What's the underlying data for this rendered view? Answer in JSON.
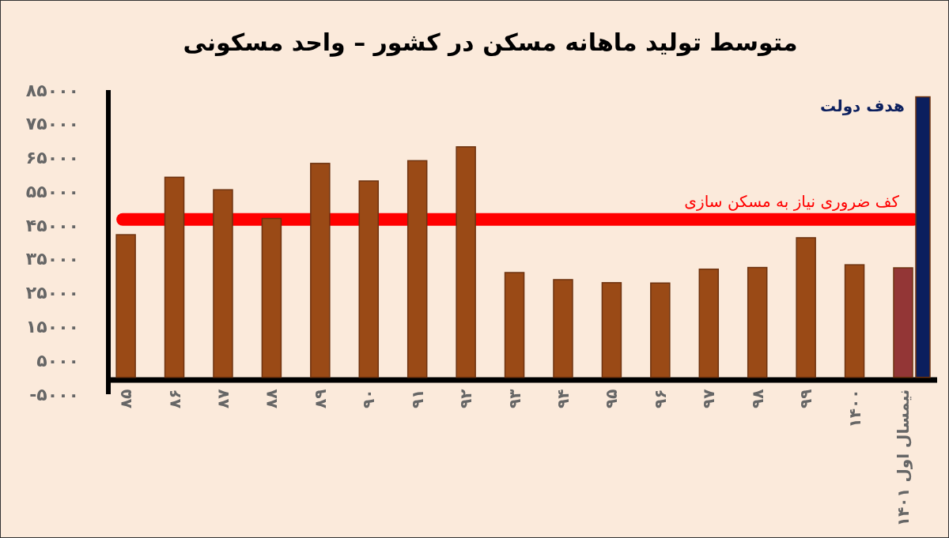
{
  "chart_data": {
    "type": "bar",
    "title": "متوسط تولید ماهانه مسکن در کشور – واحد مسکونی",
    "categories": [
      "۸۵",
      "۸۶",
      "۸۷",
      "۸۸",
      "۸۹",
      "۹۰",
      "۹۱",
      "۹۲",
      "۹۳",
      "۹۴",
      "۹۵",
      "۹۶",
      "۹۷",
      "۹۸",
      "۹۹",
      "۱۴۰۰",
      "نیمسال اول ۱۴۰۱"
    ],
    "series": [
      {
        "values": [
          42200,
          59200,
          55500,
          47000,
          63300,
          58100,
          64100,
          68200,
          31000,
          28900,
          28000,
          27900,
          32000,
          32500,
          41300,
          33300,
          32400
        ],
        "colors": [
          "#9a4a16",
          "#9a4a16",
          "#9a4a16",
          "#9a4a16",
          "#9a4a16",
          "#9a4a16",
          "#9a4a16",
          "#9a4a16",
          "#9a4a16",
          "#9a4a16",
          "#9a4a16",
          "#9a4a16",
          "#9a4a16",
          "#9a4a16",
          "#9a4a16",
          "#9a4a16",
          "#933636"
        ]
      },
      {
        "name": "هدف دولت",
        "color": "#0b1f5e",
        "values": [
          null,
          null,
          null,
          null,
          null,
          null,
          null,
          null,
          null,
          null,
          null,
          null,
          null,
          null,
          null,
          null,
          83000
        ]
      }
    ],
    "ylim": [
      -5000,
      85000
    ],
    "yticks": [
      {
        "value": 85000,
        "label": "۸۵۰۰۰"
      },
      {
        "value": 75000,
        "label": "۷۵۰۰۰"
      },
      {
        "value": 65000,
        "label": "۶۵۰۰۰"
      },
      {
        "value": 55000,
        "label": "۵۵۰۰۰"
      },
      {
        "value": 45000,
        "label": "۴۵۰۰۰"
      },
      {
        "value": 35000,
        "label": "۳۵۰۰۰"
      },
      {
        "value": 25000,
        "label": "۲۵۰۰۰"
      },
      {
        "value": 15000,
        "label": "۱۵۰۰۰"
      },
      {
        "value": 5000,
        "label": "۵۰۰۰"
      },
      {
        "value": -5000,
        "label": "-۵۰۰۰"
      }
    ],
    "ref_lines": [
      {
        "axis": "y",
        "value": 46700,
        "label": "کف ضروری نیاز به مسکن سازی",
        "color": "#ff0000"
      }
    ]
  }
}
